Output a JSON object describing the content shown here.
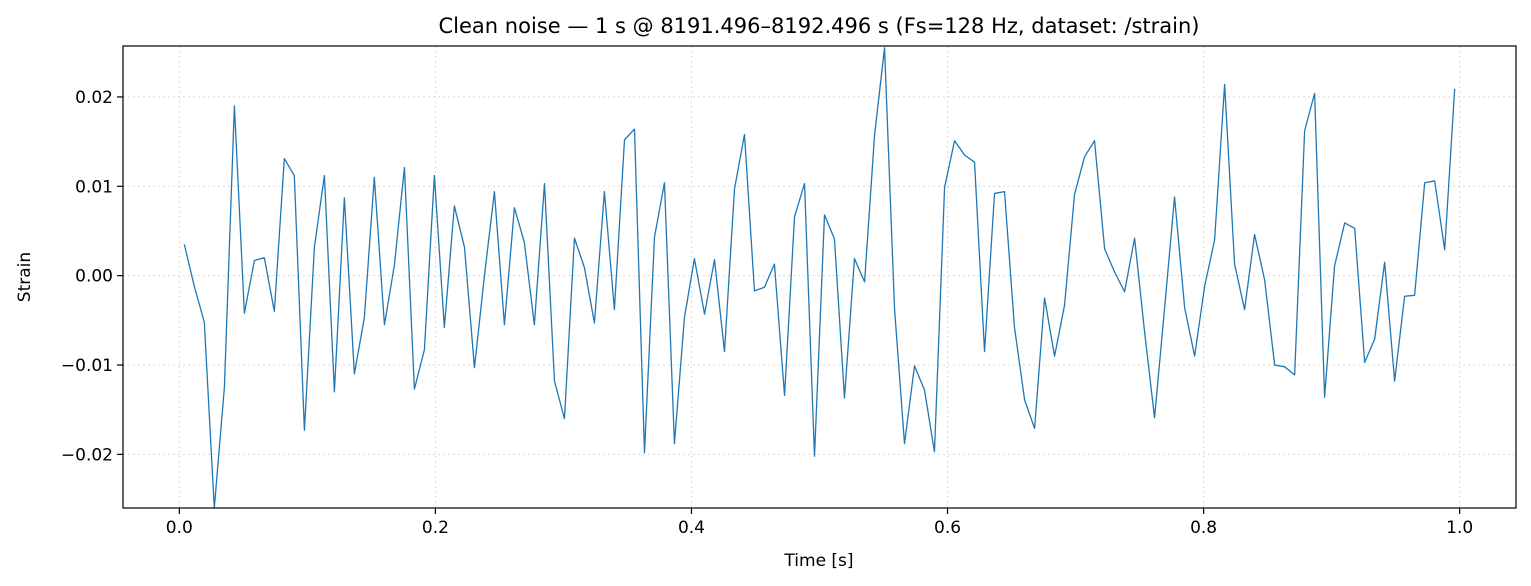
{
  "chart_data": {
    "type": "line",
    "title": "Clean noise — 1 s @ 8191.496–8192.496 s  (Fs=128 Hz, dataset: /strain)",
    "xlabel": "Time [s]",
    "ylabel": "Strain",
    "xlim": [
      -0.044,
      1.044
    ],
    "ylim": [
      -0.026,
      0.0257
    ],
    "grid": true,
    "line_color": "#1f77b4",
    "grid_color": "#d9d9d9",
    "x_ticks": [
      0.0,
      0.2,
      0.4,
      0.6,
      0.8,
      1.0
    ],
    "x_tick_labels": [
      "0.0",
      "0.2",
      "0.4",
      "0.6",
      "0.8",
      "1.0"
    ],
    "y_ticks": [
      -0.02,
      -0.01,
      0.0,
      0.01,
      0.02
    ],
    "y_tick_labels": [
      "−0.02",
      "−0.01",
      "0.00",
      "0.01",
      "0.02"
    ],
    "series": [
      {
        "x": [
          0.0039,
          0.0117,
          0.0195,
          0.0273,
          0.0352,
          0.043,
          0.0508,
          0.0586,
          0.0664,
          0.0742,
          0.082,
          0.0898,
          0.0977,
          0.1055,
          0.1133,
          0.1211,
          0.1289,
          0.1367,
          0.1445,
          0.1523,
          0.1602,
          0.168,
          0.1758,
          0.1836,
          0.1914,
          0.1992,
          0.207,
          0.2148,
          0.2227,
          0.2305,
          0.2383,
          0.2461,
          0.2539,
          0.2617,
          0.2695,
          0.2773,
          0.2852,
          0.293,
          0.3008,
          0.3086,
          0.3164,
          0.3242,
          0.332,
          0.3398,
          0.3477,
          0.3555,
          0.3633,
          0.3711,
          0.3789,
          0.3867,
          0.3945,
          0.4023,
          0.4102,
          0.418,
          0.4258,
          0.4336,
          0.4414,
          0.4492,
          0.457,
          0.4648,
          0.4727,
          0.4805,
          0.4883,
          0.4961,
          0.5039,
          0.5117,
          0.5195,
          0.5273,
          0.5352,
          0.543,
          0.5508,
          0.5586,
          0.5664,
          0.5742,
          0.582,
          0.5898,
          0.5977,
          0.6055,
          0.6133,
          0.6211,
          0.6289,
          0.6367,
          0.6445,
          0.6523,
          0.6602,
          0.668,
          0.6758,
          0.6836,
          0.6914,
          0.6992,
          0.707,
          0.7148,
          0.7227,
          0.7305,
          0.7383,
          0.7461,
          0.7539,
          0.7617,
          0.7695,
          0.7773,
          0.7852,
          0.793,
          0.8008,
          0.8086,
          0.8164,
          0.8242,
          0.832,
          0.8398,
          0.8477,
          0.8555,
          0.8633,
          0.8711,
          0.8789,
          0.8867,
          0.8945,
          0.9023,
          0.9102,
          0.918,
          0.9258,
          0.9336,
          0.9414,
          0.9492,
          0.957,
          0.9648,
          0.9727,
          0.9805,
          0.9883,
          0.9961
        ],
        "y": [
          0.0035,
          -0.0012,
          -0.0052,
          -0.026,
          -0.0125,
          0.019,
          -0.0042,
          0.0017,
          0.002,
          -0.004,
          0.0131,
          0.0112,
          -0.0173,
          0.0032,
          0.0112,
          -0.013,
          0.0087,
          -0.011,
          -0.0047,
          0.011,
          -0.0055,
          0.0012,
          0.0121,
          -0.0127,
          -0.0083,
          0.0112,
          -0.0058,
          0.0078,
          0.0032,
          -0.0103,
          0.0,
          0.0094,
          -0.0055,
          0.0076,
          0.0037,
          -0.0055,
          0.0103,
          -0.0118,
          -0.016,
          0.0042,
          0.0009,
          -0.0053,
          0.0094,
          -0.0038,
          0.0152,
          0.0164,
          -0.0198,
          0.0043,
          0.0104,
          -0.0188,
          -0.0047,
          0.0019,
          -0.0043,
          0.0018,
          -0.0085,
          0.0097,
          0.0158,
          -0.0017,
          -0.0013,
          0.0013,
          -0.0134,
          0.0066,
          0.0103,
          -0.0202,
          0.0068,
          0.0041,
          -0.0137,
          0.0019,
          -0.0007,
          0.0157,
          0.0255,
          -0.0037,
          -0.0188,
          -0.0101,
          -0.0128,
          -0.0197,
          0.0099,
          0.0151,
          0.0135,
          0.0127,
          -0.0085,
          0.0092,
          0.0094,
          -0.0058,
          -0.0139,
          -0.0171,
          -0.0025,
          -0.009,
          -0.0033,
          0.0091,
          0.0133,
          0.0151,
          0.003,
          0.0004,
          -0.0018,
          0.0042,
          -0.0063,
          -0.0159,
          -0.0037,
          0.0088,
          -0.0036,
          -0.009,
          -0.0012,
          0.004,
          0.0214,
          0.0013,
          -0.0038,
          0.0046,
          -0.0005,
          -0.01,
          -0.0102,
          -0.0111,
          0.0162,
          0.0204,
          -0.0136,
          0.0011,
          0.0059,
          0.0053,
          -0.0097,
          -0.0071,
          0.0015,
          -0.0118,
          -0.0023,
          -0.0022,
          0.0104,
          0.0106,
          0.0029,
          0.0209
        ]
      }
    ]
  }
}
